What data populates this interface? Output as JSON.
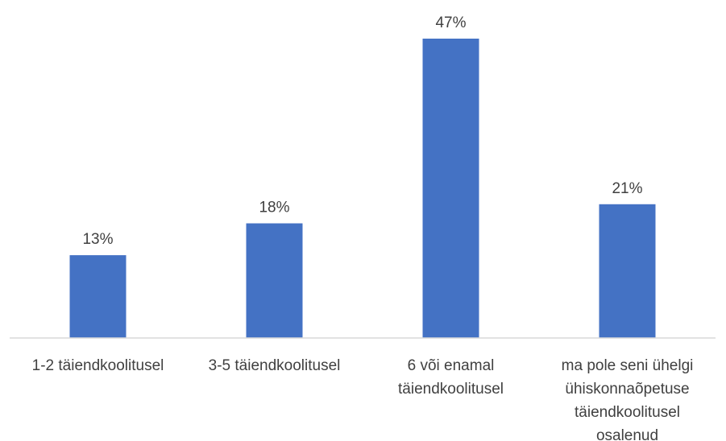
{
  "chart_data": {
    "type": "bar",
    "categories": [
      [
        "1-2 täiendkoolitusel"
      ],
      [
        "3-5 täiendkoolitusel"
      ],
      [
        "6 või enamal",
        "täiendkoolitusel"
      ],
      [
        "ma pole seni ühelgi",
        "ühiskonnaõpetuse",
        "täiendkoolitusel",
        "osalenud"
      ]
    ],
    "values": [
      13,
      18,
      47,
      21
    ],
    "data_labels": [
      "13%",
      "18%",
      "47%",
      "21%"
    ],
    "unit": "%",
    "ylim": [
      0,
      50
    ],
    "grid": false,
    "legend": "none",
    "colors": {
      "bar": "#4472C4",
      "axis": "#D9D9D9",
      "text": "#404040"
    }
  }
}
